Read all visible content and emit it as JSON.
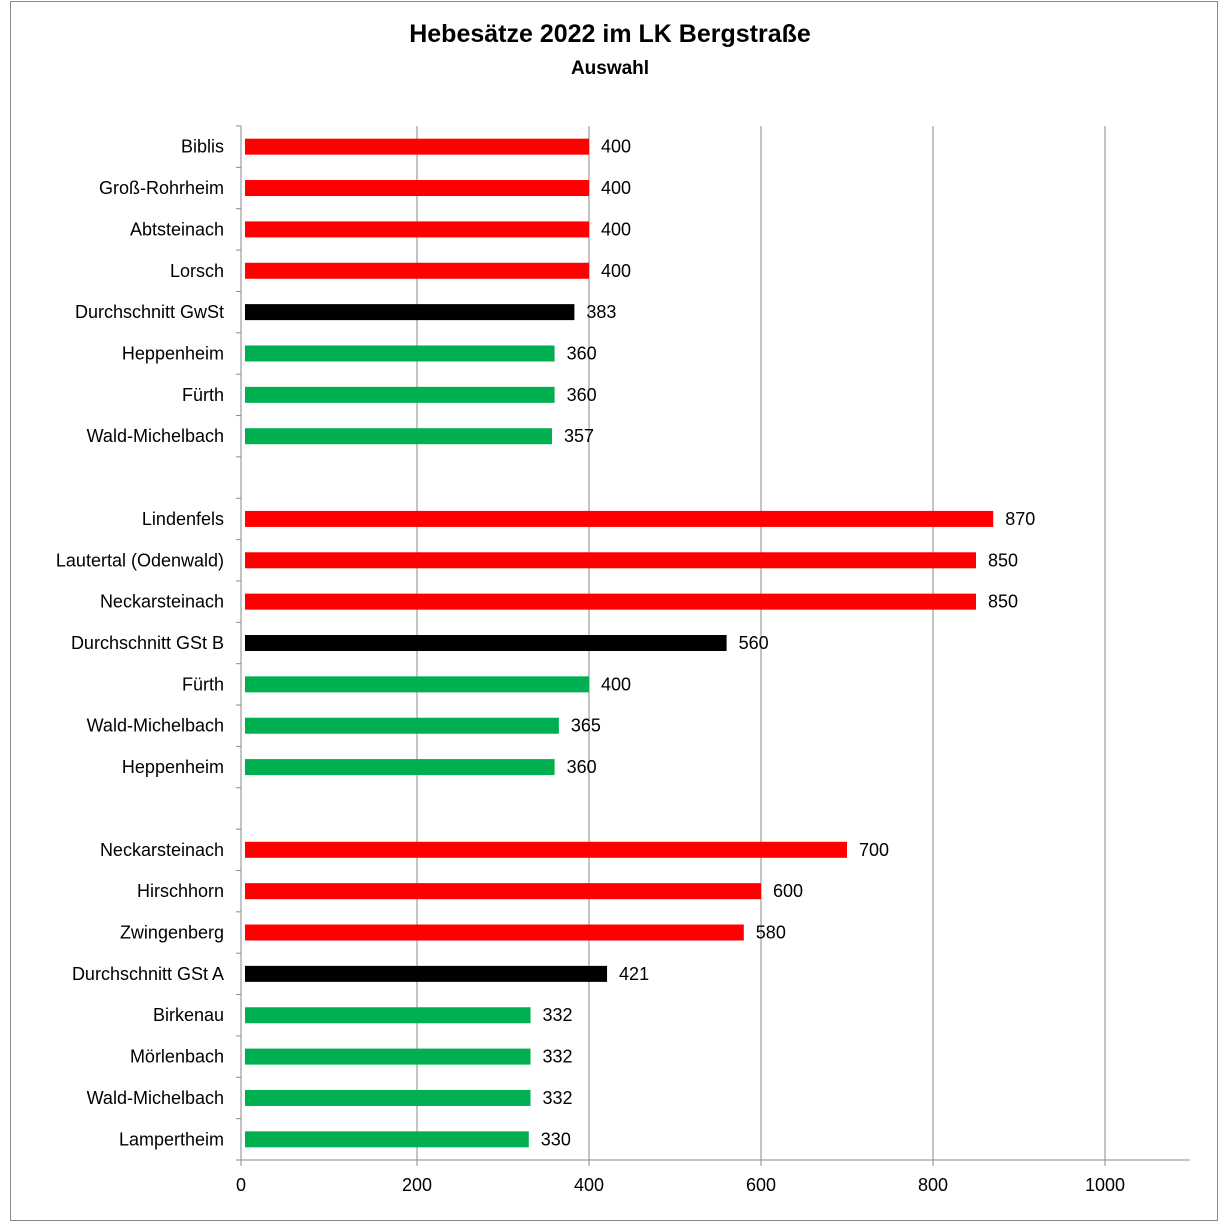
{
  "chart_data": {
    "type": "bar",
    "orientation": "horizontal",
    "title": "Hebesätze 2022 im LK Bergstraße",
    "subtitle": "Auswahl",
    "xlim": [
      0,
      1000
    ],
    "xticks": [
      0,
      200,
      400,
      600,
      800,
      1000
    ],
    "grid": true,
    "colors": {
      "high": "#ff0000",
      "average": "#000000",
      "low": "#00b050"
    },
    "categories": [
      "Biblis",
      "Groß-Rohrheim",
      "Abtsteinach",
      "Lorsch",
      "Durchschnitt GwSt",
      "Heppenheim",
      "Fürth",
      "Wald-Michelbach",
      "",
      "Lindenfels",
      "Lautertal (Odenwald)",
      "Neckarsteinach",
      "Durchschnitt GSt B",
      "Fürth",
      "Wald-Michelbach",
      "Heppenheim",
      "",
      "Neckarsteinach",
      "Hirschhorn",
      "Zwingenberg",
      "Durchschnitt GSt A",
      "Birkenau",
      "Mörlenbach",
      "Wald-Michelbach",
      "Lampertheim"
    ],
    "values": [
      400,
      400,
      400,
      400,
      383,
      360,
      360,
      357,
      null,
      870,
      850,
      850,
      560,
      400,
      365,
      360,
      null,
      700,
      600,
      580,
      421,
      332,
      332,
      332,
      330
    ],
    "bar_color_keys": [
      "high",
      "high",
      "high",
      "high",
      "average",
      "low",
      "low",
      "low",
      null,
      "high",
      "high",
      "high",
      "average",
      "low",
      "low",
      "low",
      null,
      "high",
      "high",
      "high",
      "average",
      "low",
      "low",
      "low",
      "low"
    ]
  }
}
